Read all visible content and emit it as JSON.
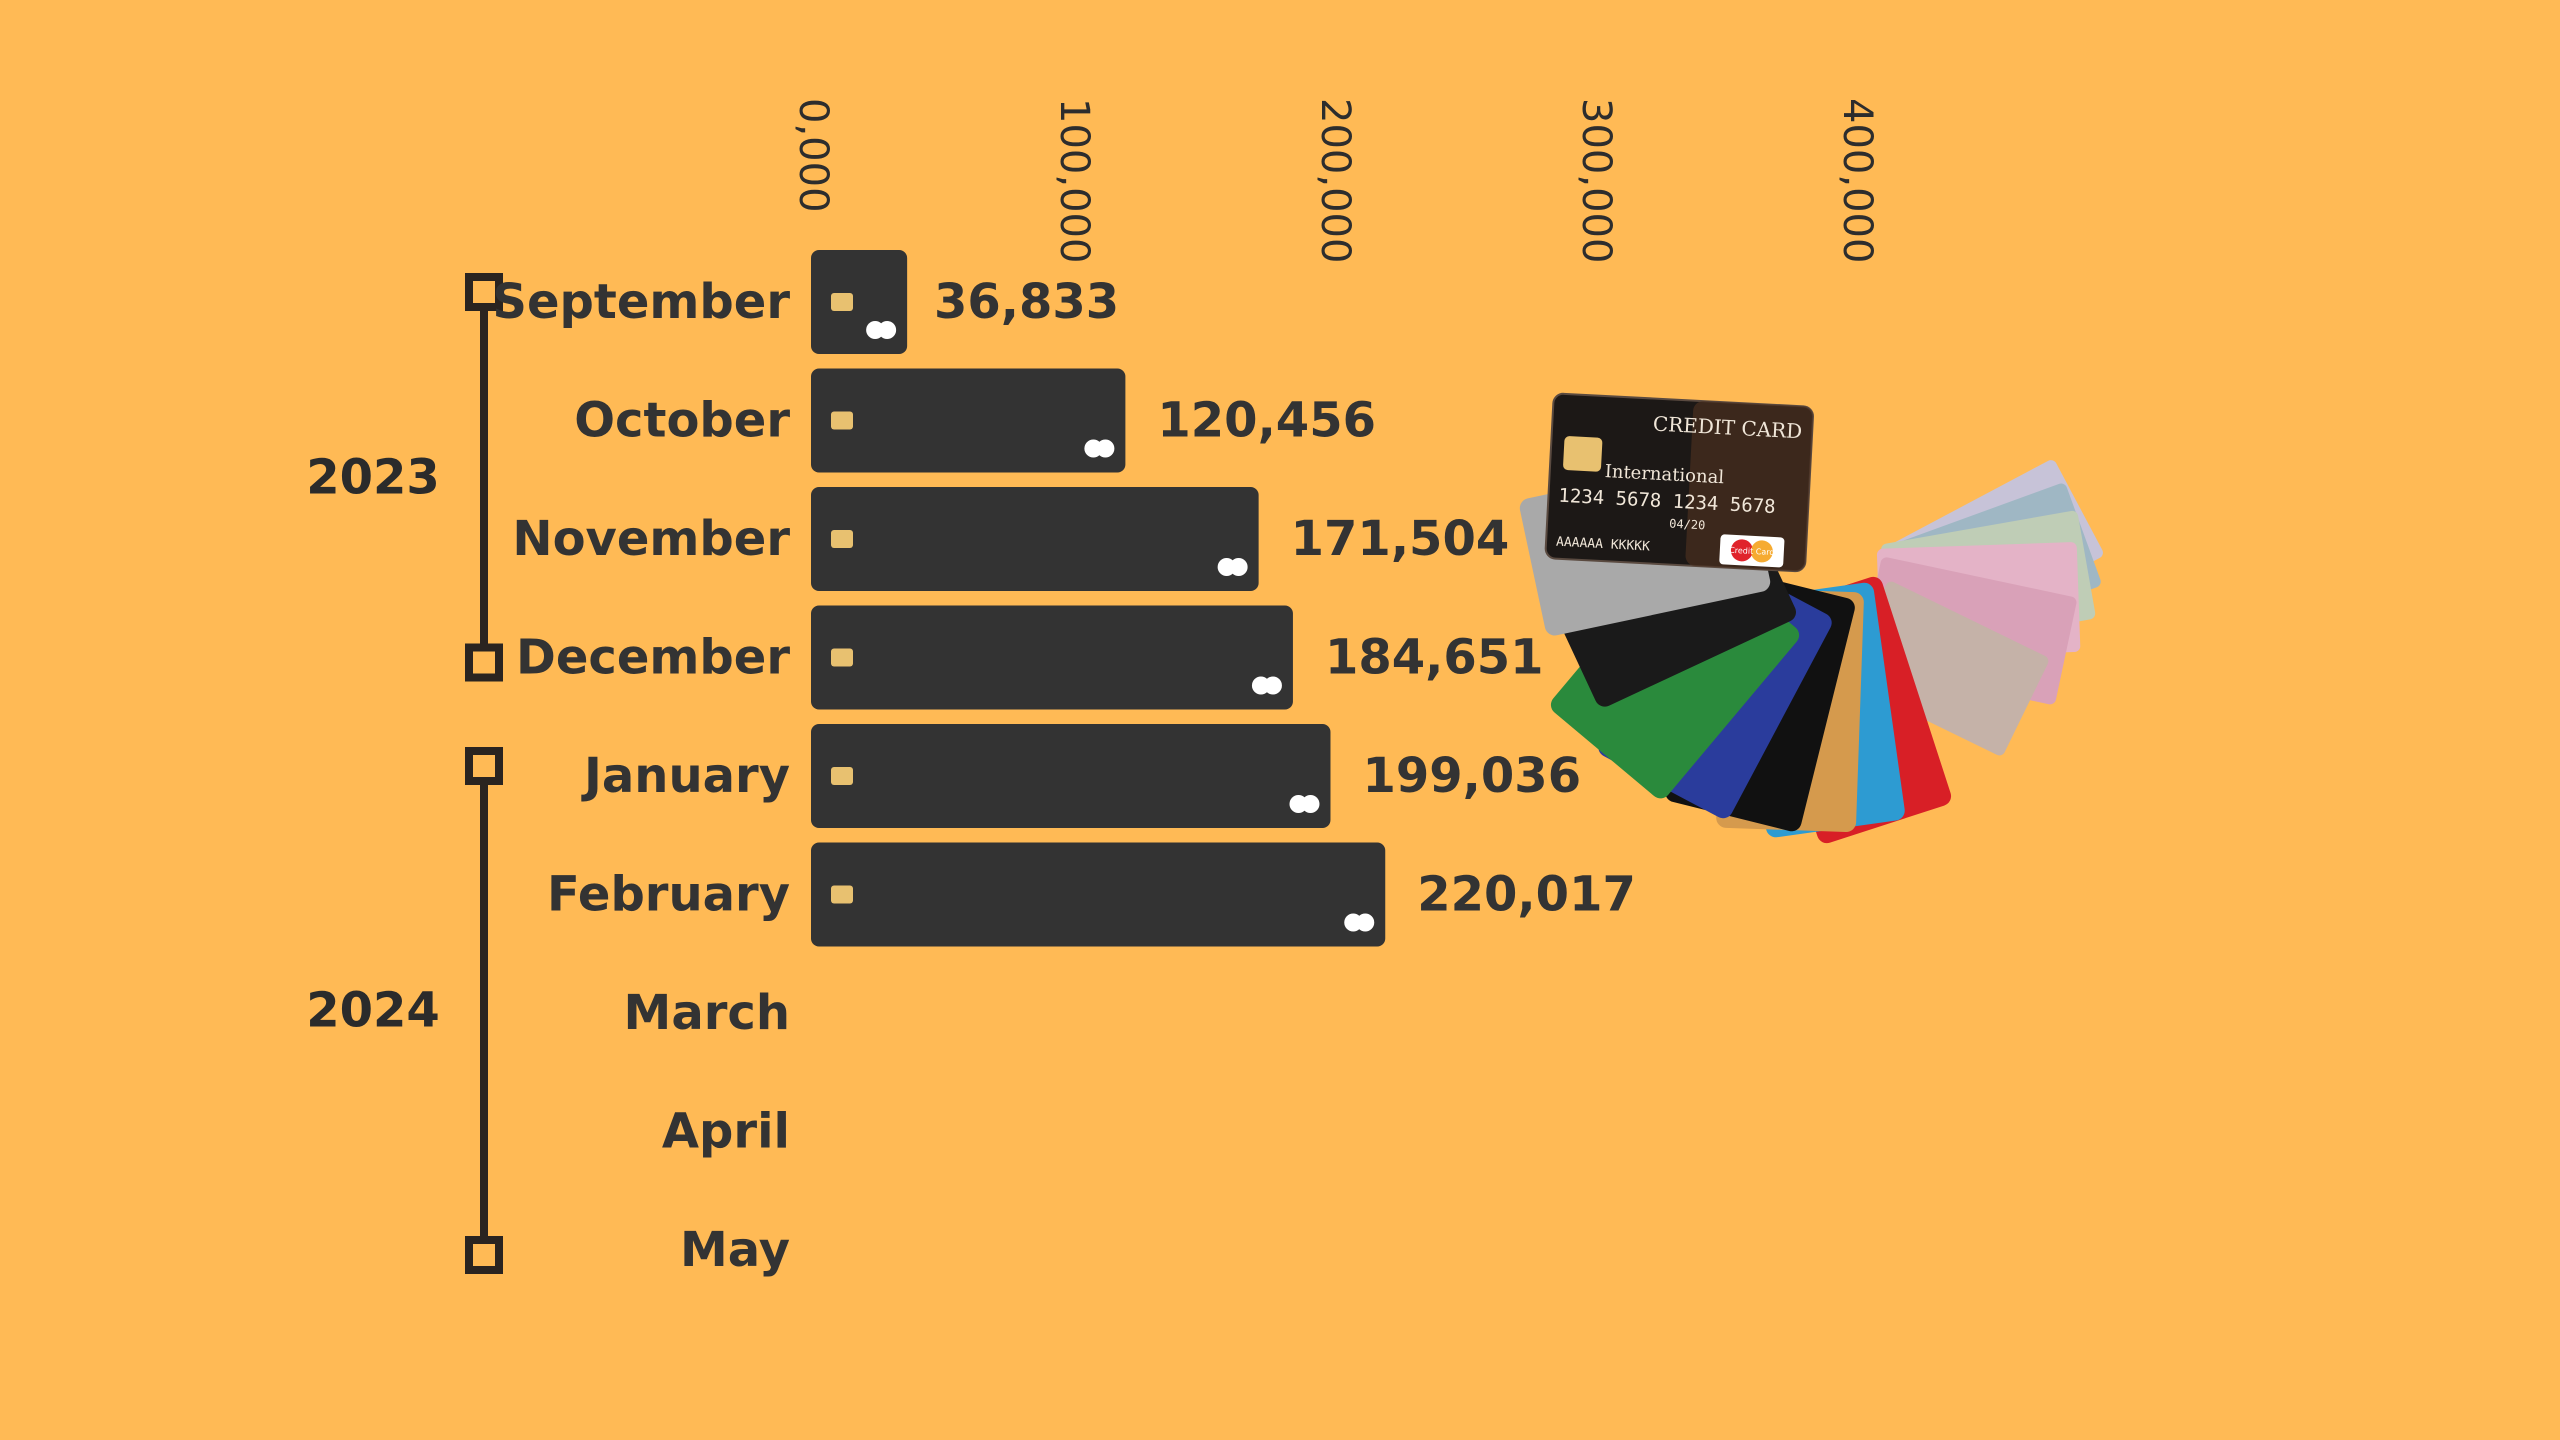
{
  "colors": {
    "background": "#FFBA55",
    "bar": "#333333",
    "text": "#333333",
    "timeline": "#2a2420",
    "chip": "#E8C170",
    "card_circles": "#FFFFFF"
  },
  "timeline": {
    "years": [
      {
        "label": "2023",
        "first_month": 0,
        "last_month": 3
      },
      {
        "label": "2024",
        "first_month": 4,
        "last_month": 8
      }
    ]
  },
  "illustration": {
    "name": "credit-cards-and-banknotes-fan",
    "card_front_text": "CREDIT CARD",
    "card_brand_text": "International",
    "card_number": "1234 5678 1234 5678",
    "card_expiry": "04/20",
    "card_holder": "AAAAAA KKKKK",
    "card_logo_text": "Credit Card"
  },
  "chart_data": {
    "type": "bar",
    "orientation": "horizontal",
    "categories": [
      "September",
      "October",
      "November",
      "December",
      "January",
      "February",
      "March",
      "April",
      "May"
    ],
    "values": [
      36833,
      120456,
      171504,
      184651,
      199036,
      220017,
      null,
      null,
      null
    ],
    "value_labels": [
      "36,833",
      "120,456",
      "171,504",
      "184,651",
      "199,036",
      "220,017",
      "",
      "",
      ""
    ],
    "x_ticks": [
      {
        "value": 0,
        "label": "0,000"
      },
      {
        "value": 100000,
        "label": "100,000"
      },
      {
        "value": 200000,
        "label": "200,000"
      },
      {
        "value": 300000,
        "label": "300,000"
      },
      {
        "value": 400000,
        "label": "400,000"
      }
    ],
    "xlim": [
      0,
      450000
    ],
    "title": "",
    "xlabel": "",
    "ylabel": "",
    "grid": false,
    "legend": "none"
  }
}
